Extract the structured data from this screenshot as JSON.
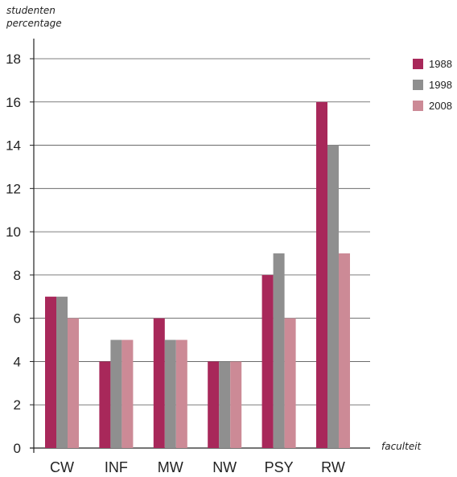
{
  "chart_data": {
    "type": "bar",
    "ylabel_lines": [
      "studenten",
      "percentage"
    ],
    "xlabel": "faculteit",
    "categories": [
      "CW",
      "INF",
      "MW",
      "NW",
      "PSY",
      "RW"
    ],
    "series": [
      {
        "name": "1988",
        "color": "#a8285a",
        "values": [
          7,
          4,
          6,
          4,
          8,
          16
        ]
      },
      {
        "name": "1998",
        "color": "#8f8f8f",
        "values": [
          7,
          5,
          5,
          4,
          9,
          14
        ]
      },
      {
        "name": "2008",
        "color": "#cc8a96",
        "values": [
          6,
          5,
          5,
          4,
          6,
          9
        ]
      }
    ],
    "ylim": [
      0,
      18
    ],
    "yticks": [
      0,
      2,
      4,
      6,
      8,
      10,
      12,
      14,
      16,
      18
    ],
    "grid": true,
    "legend": "top-right"
  }
}
